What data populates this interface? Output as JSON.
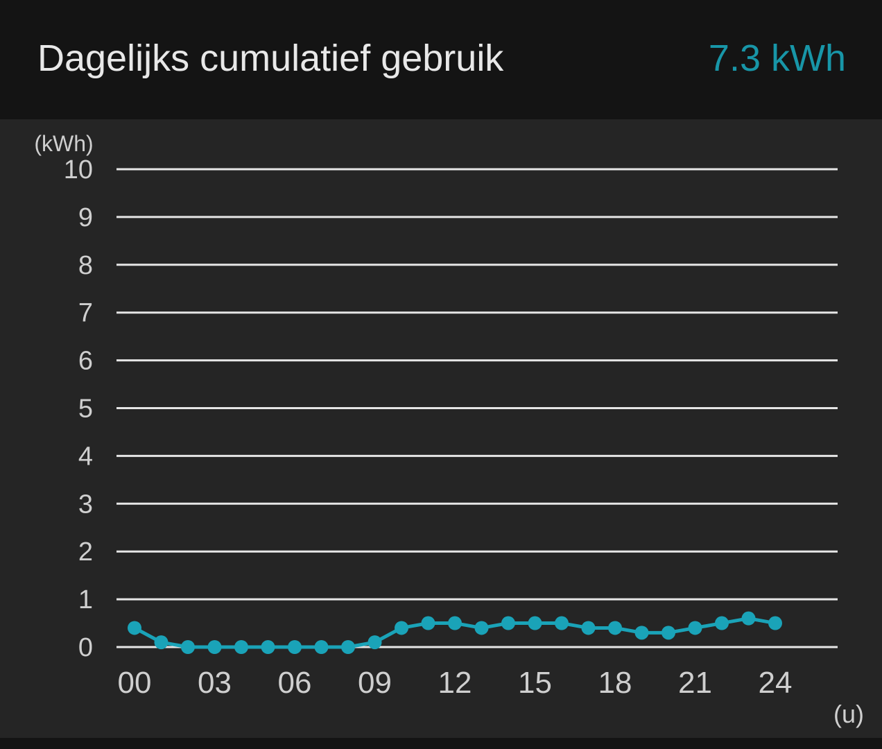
{
  "header": {
    "title": "Dagelijks cumulatief gebruik",
    "total": "7.3 kWh"
  },
  "colors": {
    "accent": "#1aa3b8",
    "total_text": "#1896a8",
    "grid": "#e6e6e6",
    "label": "#cfcfcf"
  },
  "chart_data": {
    "type": "line",
    "y_unit": "(kWh)",
    "x_unit": "(u)",
    "ylim": [
      0,
      10
    ],
    "xlim": [
      0,
      24
    ],
    "yticks": [
      "0",
      "1",
      "2",
      "3",
      "4",
      "5",
      "6",
      "7",
      "8",
      "9",
      "10"
    ],
    "xticks": [
      {
        "value": 0,
        "label": "00"
      },
      {
        "value": 3,
        "label": "03"
      },
      {
        "value": 6,
        "label": "06"
      },
      {
        "value": 9,
        "label": "09"
      },
      {
        "value": 12,
        "label": "12"
      },
      {
        "value": 15,
        "label": "15"
      },
      {
        "value": 18,
        "label": "18"
      },
      {
        "value": 21,
        "label": "21"
      },
      {
        "value": 24,
        "label": "24"
      }
    ],
    "grid": true,
    "legend": "none",
    "series": [
      {
        "x": [
          0,
          1,
          2,
          3,
          4,
          5,
          6,
          7,
          8,
          9,
          10,
          11,
          12,
          13,
          14,
          15,
          16,
          17,
          18,
          19,
          20,
          21,
          22,
          23,
          24
        ],
        "values": [
          0.4,
          0.1,
          0.0,
          0.0,
          0.0,
          0.0,
          0.0,
          0.0,
          0.0,
          0.1,
          0.4,
          0.5,
          0.5,
          0.4,
          0.5,
          0.5,
          0.5,
          0.4,
          0.4,
          0.3,
          0.3,
          0.4,
          0.5,
          0.6,
          0.5
        ]
      }
    ]
  }
}
